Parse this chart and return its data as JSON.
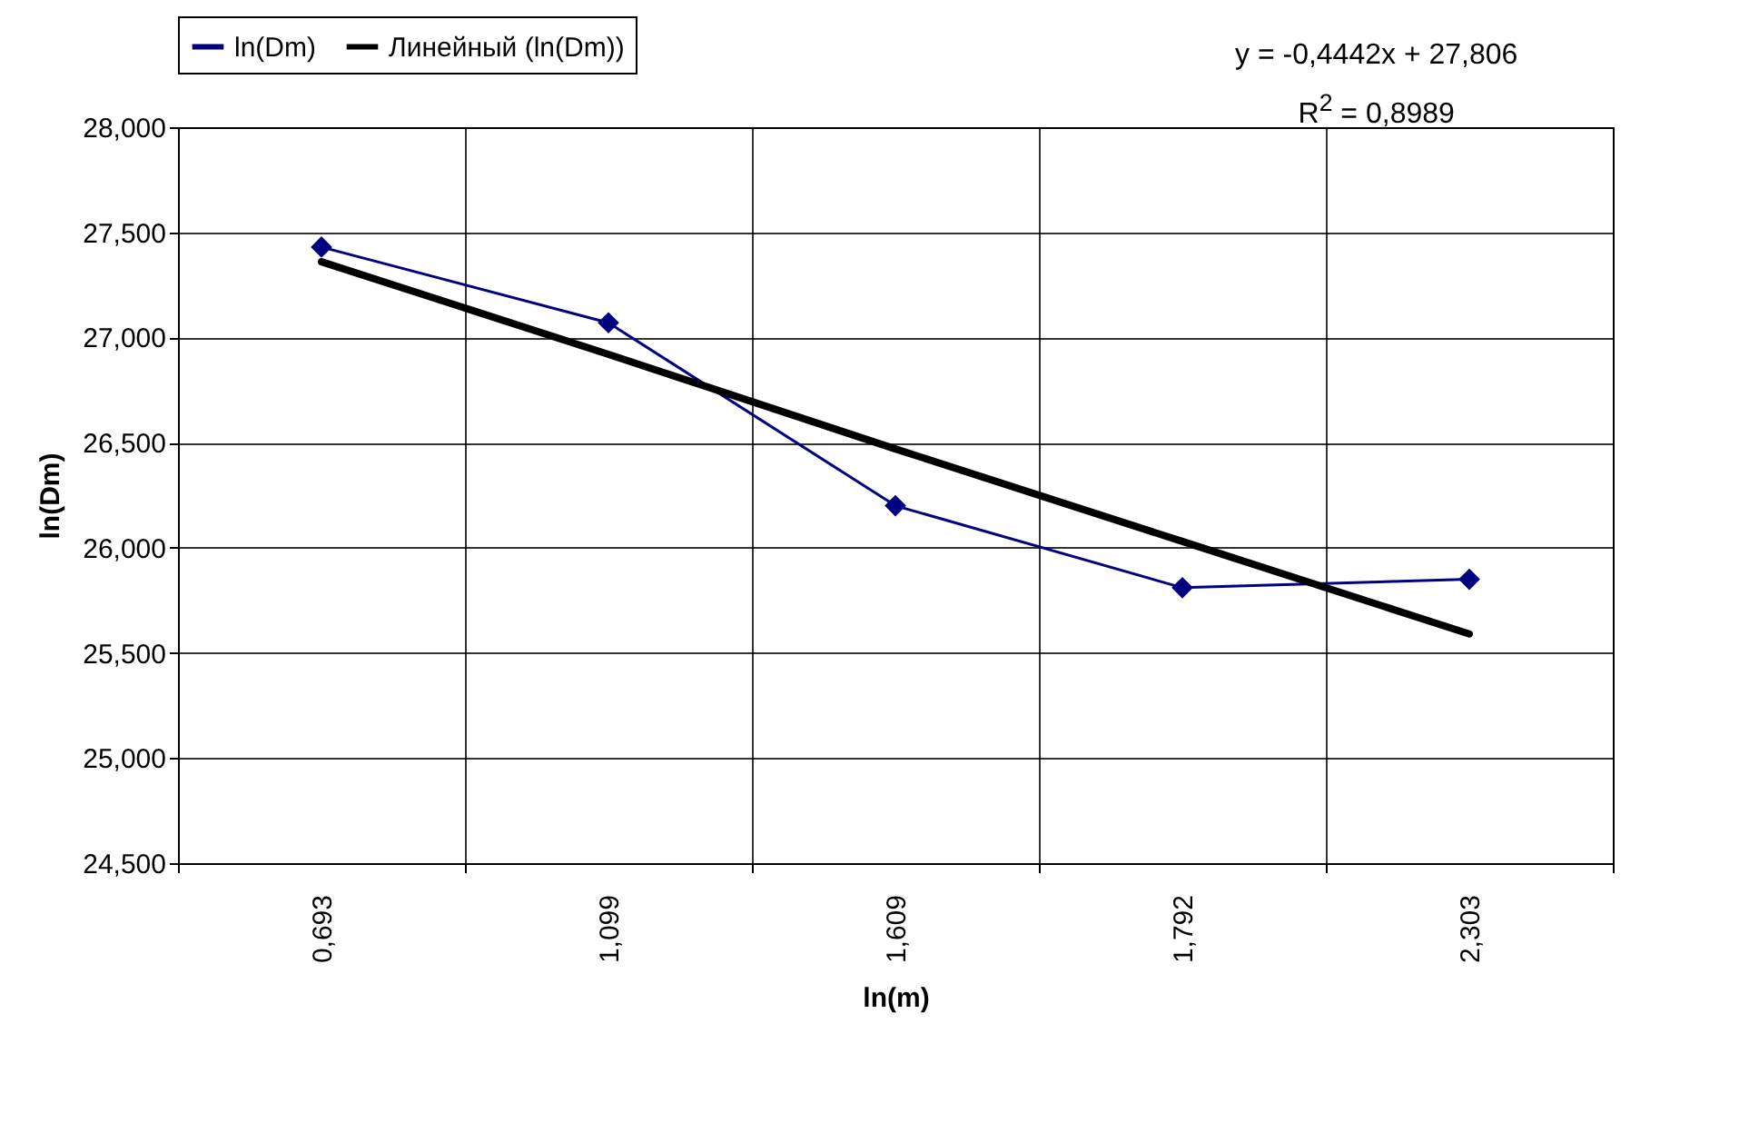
{
  "chart_data": {
    "type": "line",
    "xlabel": "ln(m)",
    "ylabel": "ln(Dm)",
    "categories": [
      "0,693",
      "1,099",
      "1,609",
      "1,792",
      "2,303"
    ],
    "series": [
      {
        "name": "ln(Dm)",
        "color": "#000080",
        "marker": "diamond",
        "line_style": "solid",
        "values": [
          27.43,
          27.07,
          26.2,
          25.81,
          25.85
        ]
      },
      {
        "name": "Линейный (ln(Dm))",
        "color": "#000000",
        "marker": "none",
        "line_style": "solid",
        "values": [
          27.36,
          26.92,
          26.47,
          26.03,
          25.59
        ]
      }
    ],
    "ylim": [
      24.5,
      28
    ],
    "yticks": [
      {
        "value": 24.5,
        "label": "24,500"
      },
      {
        "value": 25,
        "label": "25,000"
      },
      {
        "value": 25.5,
        "label": "25,500"
      },
      {
        "value": 26,
        "label": "26,000"
      },
      {
        "value": 26.5,
        "label": "26,500"
      },
      {
        "value": 27,
        "label": "27,000"
      },
      {
        "value": 27.5,
        "label": "27,500"
      },
      {
        "value": 28,
        "label": "28,000"
      }
    ],
    "grid": true,
    "legend": "top",
    "annotations": [
      "y = -0,4442x + 27,806",
      "R$^{2}$ = 0,8989"
    ]
  }
}
